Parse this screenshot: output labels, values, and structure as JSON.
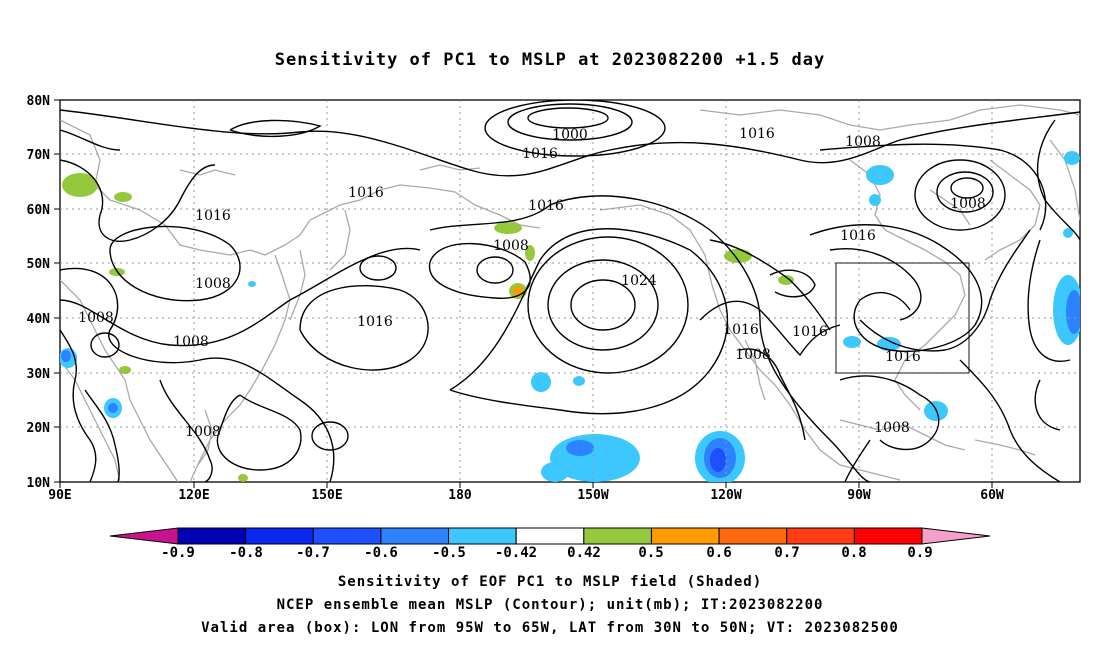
{
  "title": "Sensitivity of PC1 to MSLP at 2023082200 +1.5 day",
  "map": {
    "lat_labels": [
      "80N",
      "70N",
      "60N",
      "50N",
      "40N",
      "30N",
      "20N",
      "10N"
    ],
    "lon_labels": [
      "90E",
      "120E",
      "150E",
      "180",
      "150W",
      "120W",
      "90W",
      "60W"
    ],
    "contour_labels": [
      "1000",
      "1016",
      "1016",
      "1008",
      "1016",
      "1016",
      "1016",
      "1008",
      "1008",
      "1016",
      "1016",
      "1008",
      "1024",
      "1016",
      "1016",
      "1008",
      "1016",
      "1008",
      "1008",
      "1008",
      "1008"
    ],
    "valid_box": {
      "lon_from": "95W",
      "lon_to": "65W",
      "lat_from": "30N",
      "lat_to": "50N"
    }
  },
  "colorbar": {
    "labels": [
      "-0.9",
      "-0.8",
      "-0.7",
      "-0.6",
      "-0.5",
      "-0.42",
      "0.42",
      "0.5",
      "0.6",
      "0.7",
      "0.8",
      "0.9"
    ],
    "colors": [
      "#0000b4",
      "#0a28f0",
      "#1e50ff",
      "#2d82ff",
      "#3cc8ff",
      "#ffffff",
      "#96c83c",
      "#ff9b00",
      "#ff6a10",
      "#ff3c14",
      "#ff0000"
    ],
    "low_end_color": "#c8148c",
    "high_end_color": "#f5a0c8"
  },
  "footer": {
    "line1": "Sensitivity of EOF PC1 to MSLP field (Shaded)",
    "line2": "NCEP ensemble mean MSLP (Contour); unit(mb); IT:2023082200",
    "line3": "Valid area (box): LON from 95W to 65W, LAT from 30N to 50N; VT: 2023082500"
  }
}
